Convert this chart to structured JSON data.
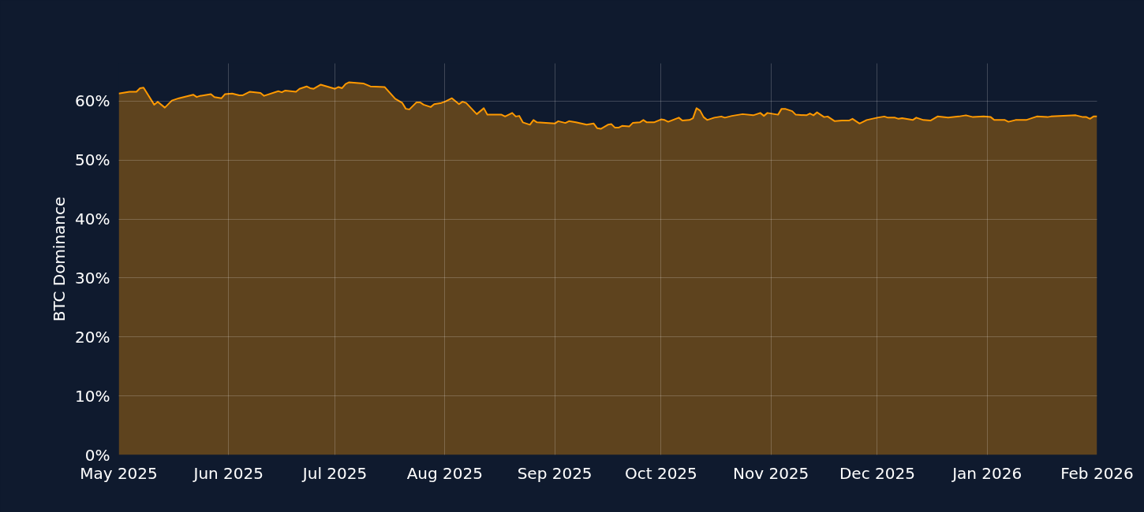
{
  "chart_data": {
    "type": "area",
    "ylabel": "BTC Dominance",
    "x": [
      "2025-05-01",
      "2025-05-04",
      "2025-05-06",
      "2025-05-07",
      "2025-05-08",
      "2025-05-11",
      "2025-05-12",
      "2025-05-14",
      "2025-05-16",
      "2025-05-18",
      "2025-05-22",
      "2025-05-23",
      "2025-05-24",
      "2025-05-27",
      "2025-05-28",
      "2025-05-30",
      "2025-05-31",
      "2025-06-02",
      "2025-06-04",
      "2025-06-05",
      "2025-06-07",
      "2025-06-10",
      "2025-06-11",
      "2025-06-15",
      "2025-06-16",
      "2025-06-17",
      "2025-06-20",
      "2025-06-21",
      "2025-06-23",
      "2025-06-24",
      "2025-06-25",
      "2025-06-27",
      "2025-07-01",
      "2025-07-02",
      "2025-07-03",
      "2025-07-04",
      "2025-07-05",
      "2025-07-07",
      "2025-07-09",
      "2025-07-11",
      "2025-07-15",
      "2025-07-18",
      "2025-07-20",
      "2025-07-21",
      "2025-07-22",
      "2025-07-24",
      "2025-07-25",
      "2025-07-26",
      "2025-07-28",
      "2025-07-29",
      "2025-07-31",
      "2025-08-01",
      "2025-08-02",
      "2025-08-03",
      "2025-08-05",
      "2025-08-06",
      "2025-08-07",
      "2025-08-10",
      "2025-08-12",
      "2025-08-13",
      "2025-08-17",
      "2025-08-18",
      "2025-08-20",
      "2025-08-21",
      "2025-08-22",
      "2025-08-23",
      "2025-08-25",
      "2025-08-26",
      "2025-08-27",
      "2025-09-01",
      "2025-09-02",
      "2025-09-04",
      "2025-09-05",
      "2025-09-07",
      "2025-09-10",
      "2025-09-12",
      "2025-09-13",
      "2025-09-14",
      "2025-09-16",
      "2025-09-17",
      "2025-09-18",
      "2025-09-19",
      "2025-09-20",
      "2025-09-22",
      "2025-09-23",
      "2025-09-25",
      "2025-09-26",
      "2025-09-27",
      "2025-09-29",
      "2025-10-01",
      "2025-10-02",
      "2025-10-03",
      "2025-10-06",
      "2025-10-07",
      "2025-10-09",
      "2025-10-10",
      "2025-10-11",
      "2025-10-12",
      "2025-10-13",
      "2025-10-14",
      "2025-10-16",
      "2025-10-18",
      "2025-10-19",
      "2025-10-21",
      "2025-10-24",
      "2025-10-27",
      "2025-10-29",
      "2025-10-30",
      "2025-10-31",
      "2025-11-02",
      "2025-11-03",
      "2025-11-04",
      "2025-11-05",
      "2025-11-07",
      "2025-11-08",
      "2025-11-11",
      "2025-11-12",
      "2025-11-13",
      "2025-11-14",
      "2025-11-16",
      "2025-11-17",
      "2025-11-19",
      "2025-11-21",
      "2025-11-23",
      "2025-11-24",
      "2025-11-26",
      "2025-11-28",
      "2025-12-01",
      "2025-12-03",
      "2025-12-04",
      "2025-12-06",
      "2025-12-07",
      "2025-12-08",
      "2025-12-11",
      "2025-12-12",
      "2025-12-14",
      "2025-12-16",
      "2025-12-18",
      "2025-12-21",
      "2025-12-24",
      "2025-12-26",
      "2025-12-28",
      "2025-12-31",
      "2026-01-02",
      "2026-01-03",
      "2026-01-06",
      "2026-01-07",
      "2026-01-09",
      "2026-01-12",
      "2026-01-15",
      "2026-01-18",
      "2026-01-19",
      "2026-01-26",
      "2026-01-28",
      "2026-01-29",
      "2026-01-30",
      "2026-01-31",
      "2026-02-01"
    ],
    "series": [
      {
        "color": "#ff9900",
        "values": [
          61.3,
          61.6,
          61.6,
          62.2,
          62.3,
          59.4,
          59.9,
          58.9,
          60.1,
          60.5,
          61.1,
          60.7,
          60.9,
          61.2,
          60.7,
          60.5,
          61.2,
          61.3,
          61.0,
          61.0,
          61.6,
          61.4,
          60.9,
          61.7,
          61.5,
          61.8,
          61.6,
          62.1,
          62.5,
          62.2,
          62.1,
          62.8,
          62.1,
          62.4,
          62.2,
          62.9,
          63.2,
          63.1,
          63.0,
          62.5,
          62.4,
          60.4,
          59.7,
          58.7,
          58.6,
          59.8,
          59.8,
          59.4,
          59.0,
          59.5,
          59.7,
          59.9,
          60.2,
          60.5,
          59.5,
          59.9,
          59.7,
          57.8,
          58.8,
          57.7,
          57.7,
          57.4,
          58.0,
          57.4,
          57.5,
          56.4,
          56.0,
          56.8,
          56.4,
          56.2,
          56.6,
          56.3,
          56.6,
          56.4,
          56.0,
          56.2,
          55.4,
          55.3,
          56.0,
          56.1,
          55.5,
          55.5,
          55.8,
          55.7,
          56.3,
          56.4,
          56.8,
          56.4,
          56.4,
          56.9,
          56.8,
          56.5,
          57.2,
          56.7,
          56.8,
          57.1,
          58.8,
          58.4,
          57.3,
          56.8,
          57.2,
          57.4,
          57.2,
          57.5,
          57.8,
          57.6,
          58.0,
          57.5,
          58.0,
          57.8,
          57.7,
          58.7,
          58.7,
          58.3,
          57.7,
          57.6,
          57.9,
          57.6,
          58.1,
          57.3,
          57.4,
          56.6,
          56.7,
          56.7,
          57.0,
          56.2,
          56.8,
          57.2,
          57.4,
          57.2,
          57.2,
          57.0,
          57.1,
          56.8,
          57.2,
          56.8,
          56.7,
          57.4,
          57.2,
          57.4,
          57.6,
          57.3,
          57.4,
          57.3,
          56.8,
          56.8,
          56.5,
          56.8,
          56.8,
          57.4,
          57.3,
          57.4,
          57.6,
          57.3,
          57.3,
          57.0,
          57.4,
          57.4
        ]
      }
    ],
    "xlim": [
      "2025-05-01",
      "2026-02-01"
    ],
    "xticks": [
      {
        "value": "2025-05-01",
        "label": "May 2025"
      },
      {
        "value": "2025-06-01",
        "label": "Jun 2025"
      },
      {
        "value": "2025-07-01",
        "label": "Jul 2025"
      },
      {
        "value": "2025-08-01",
        "label": "Aug 2025"
      },
      {
        "value": "2025-09-01",
        "label": "Sep 2025"
      },
      {
        "value": "2025-10-01",
        "label": "Oct 2025"
      },
      {
        "value": "2025-11-01",
        "label": "Nov 2025"
      },
      {
        "value": "2025-12-01",
        "label": "Dec 2025"
      },
      {
        "value": "2026-01-01",
        "label": "Jan 2026"
      },
      {
        "value": "2026-02-01",
        "label": "Feb 2026"
      }
    ],
    "ylim": [
      0,
      66.4
    ],
    "yticks": [
      {
        "value": 0,
        "label": "0%"
      },
      {
        "value": 10,
        "label": "10%"
      },
      {
        "value": 20,
        "label": "20%"
      },
      {
        "value": 30,
        "label": "30%"
      },
      {
        "value": 40,
        "label": "40%"
      },
      {
        "value": 50,
        "label": "50%"
      },
      {
        "value": 60,
        "label": "60%"
      }
    ],
    "grid": true
  }
}
